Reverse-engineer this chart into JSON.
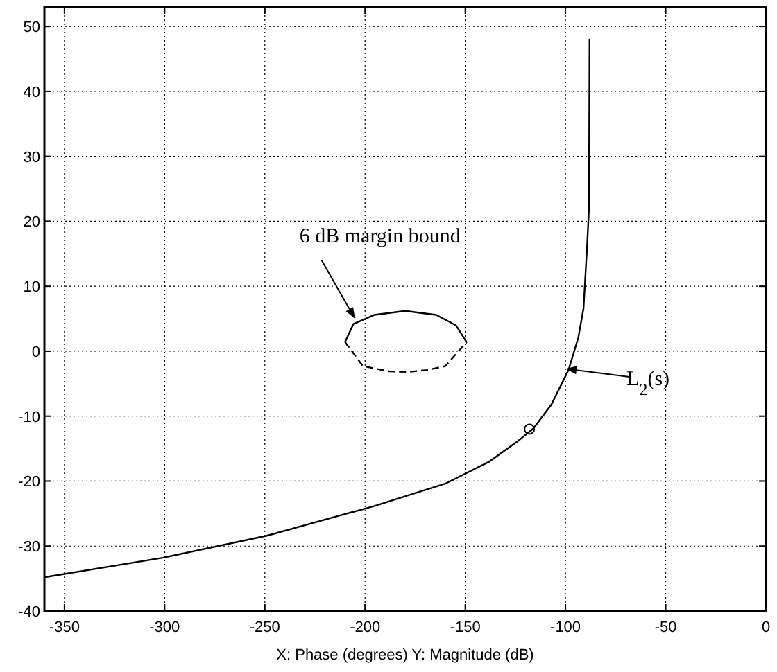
{
  "chart_data": {
    "type": "line",
    "xlabel": "X: Phase (degrees)  Y: Magnitude (dB)",
    "xlim": [
      -360,
      0
    ],
    "ylim": [
      -40,
      53
    ],
    "xticks": [
      -350,
      -300,
      -250,
      -200,
      -150,
      -100,
      -50,
      0
    ],
    "yticks": [
      -40,
      -30,
      -20,
      -10,
      0,
      10,
      20,
      30,
      40,
      50
    ],
    "grid": true,
    "series": [
      {
        "color": "#000000",
        "line_style": "solid",
        "x": [
          -360,
          -301,
          -249,
          -195,
          -160,
          -138,
          -124,
          -116,
          -107,
          -98.5,
          -93.6,
          -91,
          -89.3,
          -88.3,
          -88
        ],
        "values": [
          -34.8,
          -31.8,
          -28.4,
          -23.8,
          -20.4,
          -17,
          -13.9,
          -11.9,
          -8.2,
          -2.9,
          2.1,
          6.6,
          15.7,
          21.8,
          48
        ]
      },
      {
        "color": "#000000",
        "line_style": "solid",
        "x": [
          -210,
          -205.8,
          -195.3,
          -180,
          -164.5,
          -154.7,
          -149.3
        ],
        "values": [
          1.4,
          4.2,
          5.6,
          6.2,
          5.6,
          4.0,
          1.4
        ]
      },
      {
        "color": "#000000",
        "line_style": "dashed",
        "x": [
          -210,
          -201,
          -188,
          -178.6,
          -169,
          -160,
          -149.3
        ],
        "values": [
          1.4,
          -2.3,
          -3.1,
          -3.2,
          -2.9,
          -2.3,
          1.4
        ]
      },
      {
        "type": "scatter",
        "color": "#000000",
        "marker": "circle",
        "x": [
          -118
        ],
        "values": [
          -12
        ]
      }
    ],
    "annotations": [
      {
        "text": "6 dB margin bound",
        "x": -205,
        "y": 5
      },
      {
        "text": "L$_{2}$(s)",
        "x": -100,
        "y": -2.7
      }
    ]
  }
}
